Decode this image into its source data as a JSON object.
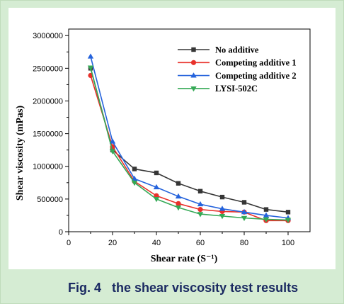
{
  "figure": {
    "caption_label": "Fig. 4",
    "caption_text": "the shear viscosity test results"
  },
  "chart_data": {
    "type": "line",
    "xlabel": "Shear rate (S⁻¹)",
    "ylabel": "Shear viscosity (mPas)",
    "x": [
      10,
      20,
      30,
      40,
      50,
      60,
      70,
      80,
      90,
      100
    ],
    "xlim": [
      0,
      110
    ],
    "ylim": [
      0,
      3100000
    ],
    "xticks": [
      0,
      20,
      40,
      60,
      80,
      100
    ],
    "yticks": [
      0,
      500000,
      1000000,
      1500000,
      2000000,
      2500000,
      3000000
    ],
    "grid": false,
    "legend": "top-right",
    "series": [
      {
        "name": "No additive",
        "marker": "square",
        "color": "#363636",
        "values": [
          2500000,
          1250000,
          960000,
          900000,
          740000,
          620000,
          530000,
          450000,
          340000,
          300000
        ]
      },
      {
        "name": "Competing additive 1",
        "marker": "circle",
        "color": "#e8312b",
        "values": [
          2390000,
          1300000,
          770000,
          550000,
          430000,
          340000,
          310000,
          300000,
          170000,
          170000
        ]
      },
      {
        "name": "Competing additive 2",
        "marker": "triangle-up",
        "color": "#2563dc",
        "values": [
          2680000,
          1380000,
          810000,
          680000,
          540000,
          420000,
          350000,
          300000,
          250000,
          210000
        ]
      },
      {
        "name": "LYSI-502C",
        "marker": "triangle-down",
        "color": "#35a956",
        "values": [
          2510000,
          1230000,
          750000,
          500000,
          370000,
          270000,
          240000,
          210000,
          190000,
          180000
        ]
      }
    ]
  }
}
